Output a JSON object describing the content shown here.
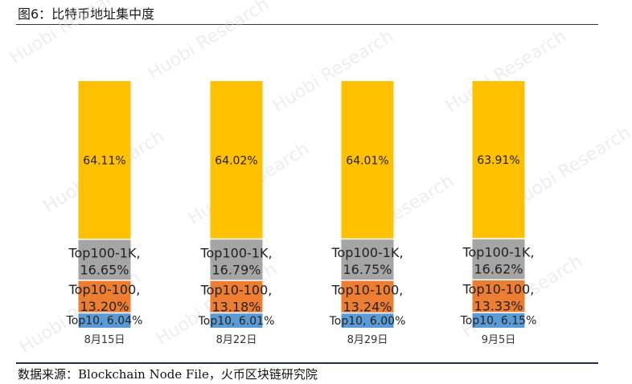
{
  "figure": {
    "title": "图6：比特币地址集中度",
    "source": "数据来源：Blockchain Node File，火币区块链研究院"
  },
  "chart_data": {
    "type": "bar",
    "stacked": true,
    "categories": [
      "8月15日",
      "8月22日",
      "8月29日",
      "9月5日"
    ],
    "series": [
      {
        "name": "Top10",
        "color": "#5b9bd5",
        "values": [
          6.04,
          6.01,
          6.0,
          6.15
        ],
        "labels": [
          "Top10, 6.04%",
          "Top10, 6.01%",
          "Top10, 6.00%",
          "Top10, 6.15%"
        ]
      },
      {
        "name": "Top10-100",
        "color": "#ed7d31",
        "values": [
          13.2,
          13.18,
          13.24,
          13.33
        ],
        "labels": [
          [
            "Top10-100,",
            "13.20%"
          ],
          [
            "Top10-100,",
            "13.18%"
          ],
          [
            "Top10-100,",
            "13.24%"
          ],
          [
            "Top10-100,",
            "13.33%"
          ]
        ]
      },
      {
        "name": "Top100-1K",
        "color": "#a5a5a5",
        "values": [
          16.65,
          16.79,
          16.75,
          16.62
        ],
        "labels": [
          [
            "Top100-1K,",
            "16.65%"
          ],
          [
            "Top100-1K,",
            "16.79%"
          ],
          [
            "Top100-1K,",
            "16.75%"
          ],
          [
            "Top100-1K,",
            "16.62%"
          ]
        ]
      },
      {
        "name": "",
        "color": "#ffc000",
        "values": [
          64.11,
          64.02,
          64.01,
          63.91
        ],
        "labels": [
          "64.11%",
          "64.02%",
          "64.01%",
          "63.91%"
        ]
      }
    ],
    "ylim": [
      0,
      100
    ],
    "grid": false,
    "watermark": "Huobi Research"
  }
}
